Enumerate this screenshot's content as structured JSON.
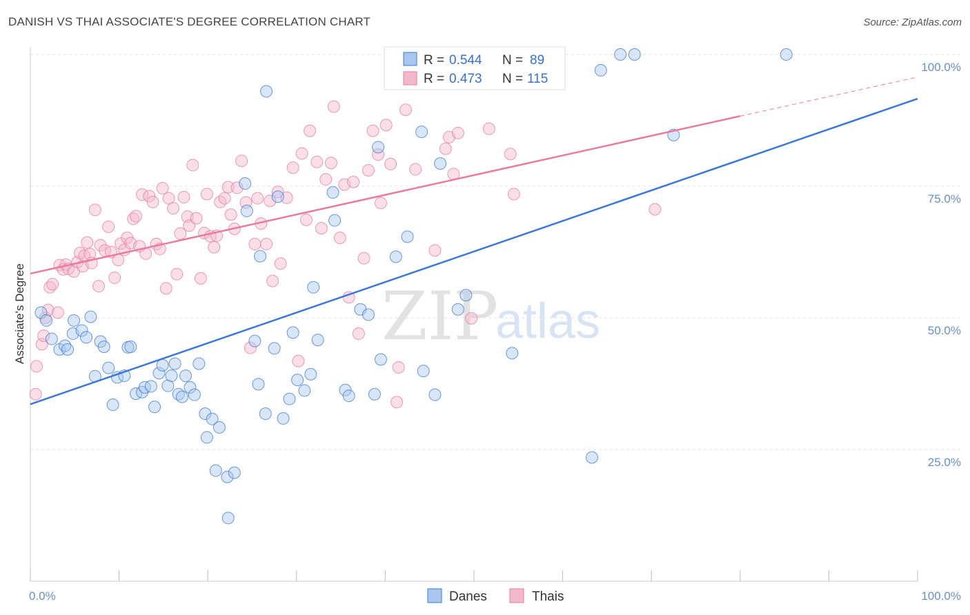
{
  "title": "DANISH VS THAI ASSOCIATE'S DEGREE CORRELATION CHART",
  "source": "Source: ZipAtlas.com",
  "watermark": {
    "zip": "ZIP",
    "atlas": "atlas"
  },
  "chart_data": {
    "type": "scatter",
    "ylabel": "Associate's Degree",
    "xlim": [
      0,
      100
    ],
    "ylim": [
      0,
      100
    ],
    "x_tick_labels": {
      "left": "0.0%",
      "right": "100.0%"
    },
    "y_tick_labels": [
      "100.0%",
      "75.0%",
      "50.0%",
      "25.0%"
    ],
    "grid": true,
    "legend": {
      "placement": "top-center",
      "entries": [
        {
          "r_label": "R = ",
          "r_value": "0.544",
          "n_label": "N = ",
          "n_value": "89"
        },
        {
          "r_label": "R = ",
          "r_value": "0.473",
          "n_label": "N = ",
          "n_value": "115"
        }
      ]
    },
    "colors": {
      "danes": "#3a78d4",
      "thais": "#e87aa0",
      "danes_fill": "#a9c7ee",
      "thais_fill": "#f4b8cc"
    },
    "series": [
      {
        "name": "Danes",
        "trend": {
          "x0": 0,
          "y0": 33.6,
          "x1": 100,
          "y1": 91.6
        },
        "points": [
          [
            1.2,
            51
          ],
          [
            1.8,
            49.5
          ],
          [
            2.4,
            46
          ],
          [
            3.3,
            44
          ],
          [
            3.9,
            44.7
          ],
          [
            4.2,
            44
          ],
          [
            4.8,
            47
          ],
          [
            4.9,
            49.5
          ],
          [
            5.8,
            47.6
          ],
          [
            6.3,
            46.3
          ],
          [
            6.8,
            50.2
          ],
          [
            7.3,
            38.9
          ],
          [
            7.9,
            45.5
          ],
          [
            8.3,
            44.5
          ],
          [
            8.8,
            40.5
          ],
          [
            9.3,
            33.5
          ],
          [
            9.8,
            38.7
          ],
          [
            10.6,
            39
          ],
          [
            11,
            44.4
          ],
          [
            11.3,
            44.5
          ],
          [
            11.9,
            35.6
          ],
          [
            12.6,
            35.9
          ],
          [
            12.9,
            36.8
          ],
          [
            13.6,
            37
          ],
          [
            14,
            33.1
          ],
          [
            14.5,
            39.5
          ],
          [
            14.9,
            41
          ],
          [
            15.5,
            37.1
          ],
          [
            15.9,
            39
          ],
          [
            16.3,
            41.3
          ],
          [
            16.7,
            35.5
          ],
          [
            17.1,
            35
          ],
          [
            17.5,
            39
          ],
          [
            18,
            36.8
          ],
          [
            18.5,
            35.4
          ],
          [
            19,
            41.3
          ],
          [
            19.7,
            31.8
          ],
          [
            19.9,
            27.3
          ],
          [
            20.5,
            30.8
          ],
          [
            20.9,
            21
          ],
          [
            21.3,
            29.2
          ],
          [
            22.2,
            19.8
          ],
          [
            23,
            20.6
          ],
          [
            22.3,
            12
          ],
          [
            24.2,
            75.5
          ],
          [
            24.4,
            70.3
          ],
          [
            25.3,
            45.6
          ],
          [
            25.7,
            37.4
          ],
          [
            25.9,
            61.7
          ],
          [
            26.5,
            31.8
          ],
          [
            26.6,
            93
          ],
          [
            27.5,
            44.2
          ],
          [
            27.9,
            73
          ],
          [
            28.5,
            30.9
          ],
          [
            29.2,
            34.6
          ],
          [
            29.6,
            47.2
          ],
          [
            30.1,
            38.2
          ],
          [
            30.9,
            36.2
          ],
          [
            31.6,
            39.3
          ],
          [
            31.9,
            55.8
          ],
          [
            32.4,
            45.8
          ],
          [
            34.1,
            73.8
          ],
          [
            34.3,
            68.5
          ],
          [
            35.5,
            36.3
          ],
          [
            35.9,
            35.2
          ],
          [
            37.2,
            51.6
          ],
          [
            38.1,
            50.6
          ],
          [
            38.8,
            35.5
          ],
          [
            39.2,
            82.4
          ],
          [
            39.5,
            42.1
          ],
          [
            41.2,
            61.6
          ],
          [
            42.5,
            65.4
          ],
          [
            44.1,
            85.3
          ],
          [
            44.3,
            39.9
          ],
          [
            45.6,
            35.4
          ],
          [
            46.2,
            79.3
          ],
          [
            48.2,
            51.6
          ],
          [
            49.1,
            54.3
          ],
          [
            54.3,
            43.3
          ],
          [
            58.9,
            100
          ],
          [
            63.3,
            23.5
          ],
          [
            64.3,
            97
          ],
          [
            66.5,
            100
          ],
          [
            68.1,
            100
          ],
          [
            72.5,
            84.7
          ],
          [
            85.2,
            100
          ]
        ]
      },
      {
        "name": "Thais",
        "trend": {
          "x0": 0,
          "y0": 58.4,
          "x1": 80,
          "y1": 88.3,
          "x_dash_end": 100,
          "y_dash_end": 95.7
        },
        "points": [
          [
            0.6,
            35.5
          ],
          [
            0.7,
            40.8
          ],
          [
            1.3,
            45
          ],
          [
            1.5,
            46.6
          ],
          [
            1.7,
            50
          ],
          [
            2,
            51.5
          ],
          [
            2.2,
            55.8
          ],
          [
            2.5,
            56.4
          ],
          [
            3.1,
            51
          ],
          [
            3.3,
            60
          ],
          [
            3.7,
            59.2
          ],
          [
            4,
            60.1
          ],
          [
            4.3,
            59.3
          ],
          [
            4.9,
            58.8
          ],
          [
            5.3,
            60.6
          ],
          [
            5.6,
            62.3
          ],
          [
            5.9,
            59.8
          ],
          [
            6.1,
            61.8
          ],
          [
            6.4,
            64.3
          ],
          [
            6.7,
            62.1
          ],
          [
            6.9,
            60.4
          ],
          [
            7.3,
            70.5
          ],
          [
            7.7,
            56
          ],
          [
            7.9,
            63.8
          ],
          [
            8.4,
            62.8
          ],
          [
            8.8,
            67.3
          ],
          [
            9.1,
            62.5
          ],
          [
            9.5,
            57.6
          ],
          [
            9.9,
            61
          ],
          [
            10.2,
            64.1
          ],
          [
            10.6,
            62.9
          ],
          [
            10.9,
            65.2
          ],
          [
            11.3,
            64.2
          ],
          [
            11.6,
            68.8
          ],
          [
            11.9,
            69.3
          ],
          [
            12.3,
            63.6
          ],
          [
            12.6,
            73.4
          ],
          [
            13,
            62.2
          ],
          [
            13.4,
            73.1
          ],
          [
            13.8,
            72
          ],
          [
            14.2,
            64
          ],
          [
            14.6,
            63.1
          ],
          [
            14.9,
            74.6
          ],
          [
            15.3,
            55.6
          ],
          [
            15.6,
            72.7
          ],
          [
            16.1,
            70.8
          ],
          [
            16.5,
            58.3
          ],
          [
            16.9,
            66
          ],
          [
            17.3,
            72.9
          ],
          [
            17.7,
            69.2
          ],
          [
            17.9,
            67.5
          ],
          [
            18.3,
            79
          ],
          [
            18.7,
            68.9
          ],
          [
            19.2,
            57.5
          ],
          [
            19.6,
            66.1
          ],
          [
            19.9,
            73.5
          ],
          [
            20.3,
            65.5
          ],
          [
            20.7,
            63.4
          ],
          [
            21,
            65.6
          ],
          [
            21.4,
            72
          ],
          [
            21.9,
            72.7
          ],
          [
            22.3,
            74.8
          ],
          [
            22.6,
            69.6
          ],
          [
            23,
            66.9
          ],
          [
            23.3,
            74.7
          ],
          [
            23.8,
            79.8
          ],
          [
            24.3,
            71.9
          ],
          [
            24.8,
            44.3
          ],
          [
            25.3,
            64
          ],
          [
            25.6,
            72.7
          ],
          [
            26,
            67.9
          ],
          [
            26.6,
            64
          ],
          [
            27,
            72.2
          ],
          [
            27.3,
            57
          ],
          [
            27.9,
            73.9
          ],
          [
            28.2,
            60.3
          ],
          [
            28.9,
            72.8
          ],
          [
            29.6,
            78.5
          ],
          [
            30.2,
            41.8
          ],
          [
            30.6,
            81.2
          ],
          [
            31.1,
            68.6
          ],
          [
            31.5,
            85.5
          ],
          [
            32.3,
            79.6
          ],
          [
            32.8,
            67
          ],
          [
            33.3,
            76.3
          ],
          [
            33.9,
            79.4
          ],
          [
            34.2,
            90.1
          ],
          [
            34.9,
            65.2
          ],
          [
            35.4,
            75.3
          ],
          [
            35.9,
            53.9
          ],
          [
            36.4,
            75.8
          ],
          [
            37,
            47
          ],
          [
            37.6,
            61.3
          ],
          [
            38.1,
            78
          ],
          [
            38.6,
            85.5
          ],
          [
            39.2,
            81
          ],
          [
            39.5,
            71.8
          ],
          [
            40.1,
            86.6
          ],
          [
            40.6,
            79.2
          ],
          [
            41.3,
            34
          ],
          [
            41.5,
            40.6
          ],
          [
            42.3,
            89.5
          ],
          [
            43.4,
            78.2
          ],
          [
            45.6,
            62.8
          ],
          [
            46.8,
            82.1
          ],
          [
            47.2,
            84.3
          ],
          [
            47.7,
            77.3
          ],
          [
            48.2,
            85.1
          ],
          [
            49.7,
            49.9
          ],
          [
            51.7,
            85.9
          ],
          [
            54.1,
            81.1
          ],
          [
            54.5,
            73.5
          ],
          [
            70.4,
            70.6
          ]
        ]
      }
    ]
  }
}
